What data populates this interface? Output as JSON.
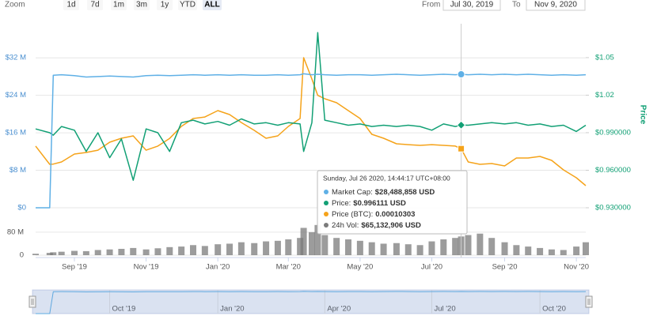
{
  "zoom": {
    "label": "Zoom",
    "buttons": [
      "1d",
      "7d",
      "1m",
      "3m",
      "1y",
      "YTD",
      "ALL"
    ],
    "selected": "ALL"
  },
  "range": {
    "from_label": "From",
    "from": "Jul 30, 2019",
    "to_label": "To",
    "to": "Nov 9, 2020"
  },
  "chart_data": {
    "type": "line",
    "x": [
      "2019-07-30",
      "2019-08-11",
      "2019-08-14",
      "2019-08-21",
      "2019-09-01",
      "2019-09-11",
      "2019-09-21",
      "2019-10-01",
      "2019-10-11",
      "2019-10-21",
      "2019-11-01",
      "2019-11-11",
      "2019-11-21",
      "2019-12-01",
      "2019-12-11",
      "2019-12-21",
      "2020-01-01",
      "2020-01-11",
      "2020-01-21",
      "2020-02-01",
      "2020-02-11",
      "2020-02-21",
      "2020-03-01",
      "2020-03-11",
      "2020-03-14",
      "2020-03-21",
      "2020-03-26",
      "2020-04-01",
      "2020-04-11",
      "2020-04-21",
      "2020-05-01",
      "2020-05-11",
      "2020-05-21",
      "2020-06-01",
      "2020-06-11",
      "2020-06-21",
      "2020-07-01",
      "2020-07-11",
      "2020-07-21",
      "2020-07-26",
      "2020-08-01",
      "2020-08-11",
      "2020-08-21",
      "2020-09-01",
      "2020-09-11",
      "2020-09-21",
      "2020-10-01",
      "2020-10-11",
      "2020-10-21",
      "2020-11-01",
      "2020-11-09"
    ],
    "xlim": [
      "2019-07-30",
      "2020-11-09"
    ],
    "xticks": [
      {
        "value": "2019-09-01",
        "label": "Sep '19"
      },
      {
        "value": "2019-11-01",
        "label": "Nov '19"
      },
      {
        "value": "2020-01-01",
        "label": "Jan '20"
      },
      {
        "value": "2020-03-01",
        "label": "Mar '20"
      },
      {
        "value": "2020-05-01",
        "label": "May '20"
      },
      {
        "value": "2020-07-01",
        "label": "Jul '20"
      },
      {
        "value": "2020-09-01",
        "label": "Sep '20"
      },
      {
        "value": "2020-11-01",
        "label": "Nov '20"
      }
    ],
    "ylim": [
      0,
      37600000
    ],
    "yticks": [
      {
        "value": 0,
        "label": "$0"
      },
      {
        "value": 8000000,
        "label": "$8 M"
      },
      {
        "value": 16000000,
        "label": "$16 M"
      },
      {
        "value": 24000000,
        "label": "$24 M"
      },
      {
        "value": 32000000,
        "label": "$32 M"
      }
    ],
    "y2lim": [
      0.93,
      1.0708
    ],
    "y2ticks": [
      {
        "value": 0.93,
        "label": "$0.930000"
      },
      {
        "value": 0.96,
        "label": "$0.960000"
      },
      {
        "value": 0.99,
        "label": "$0.990000"
      },
      {
        "value": 1.02,
        "label": "$1.02"
      },
      {
        "value": 1.05,
        "label": "$1.05"
      }
    ],
    "y2label": "Price",
    "y3lim": [
      4e-05,
      0.000228
    ],
    "grid": true,
    "series": [
      {
        "color": "#5fb0e6",
        "axis": "y",
        "values": [
          0,
          0,
          28300000,
          28400000,
          28200000,
          27900000,
          28000000,
          28100000,
          28000000,
          27900000,
          28200000,
          28300000,
          28200000,
          28300000,
          28400000,
          28300000,
          28400000,
          28300000,
          28400000,
          28300000,
          28300000,
          28400000,
          28300000,
          28400000,
          28600000,
          28400000,
          28500000,
          28400000,
          28300000,
          28400000,
          28400000,
          28300000,
          28400000,
          28500000,
          28400000,
          28300000,
          28400000,
          28500000,
          28400000,
          28488858,
          28400000,
          28500000,
          28400000,
          28500000,
          28400000,
          28500000,
          28400000,
          28300000,
          28400000,
          28300000,
          28400000
        ]
      },
      {
        "color": "#12a075",
        "axis": "y2",
        "values": [
          0.993,
          0.99,
          0.988,
          0.995,
          0.992,
          0.975,
          0.99,
          0.97,
          0.985,
          0.952,
          0.993,
          0.99,
          0.975,
          0.998,
          1.0,
          0.997,
          0.999,
          0.996,
          1.001,
          0.997,
          0.998,
          0.996,
          0.998,
          0.997,
          0.975,
          0.998,
          1.07,
          1.0,
          0.998,
          0.996,
          0.997,
          0.995,
          0.996,
          0.995,
          0.996,
          0.995,
          0.992,
          0.997,
          0.995,
          0.996111,
          0.996,
          0.997,
          0.998,
          0.997,
          0.998,
          0.996,
          0.997,
          0.995,
          0.996,
          0.991,
          0.996
        ]
      },
      {
        "color": "#f5a31a",
        "axis": "y3",
        "values": [
          0.0001058,
          8.64e-05,
          8.66e-05,
          8.89e-05,
          9.73e-05,
          9.9e-05,
          0.0001015,
          0.00011,
          0.0001142,
          0.0001167,
          0.0001015,
          0.0001058,
          0.000114,
          0.0001268,
          0.0001353,
          0.0001369,
          0.0001437,
          0.0001395,
          0.000131,
          0.0001226,
          0.0001142,
          0.0001167,
          0.0001268,
          0.0001353,
          0.0002002,
          0.0001774,
          0.00016,
          0.0001563,
          0.0001521,
          0.0001437,
          0.0001353,
          0.0001184,
          0.0001142,
          0.0001083,
          0.0001074,
          0.0001066,
          0.0001074,
          0.0001066,
          0.0001058,
          0.00010303,
          8.89e-05,
          8.64e-05,
          8.72e-05,
          8.47e-05,
          9.31e-05,
          9.31e-05,
          9.48e-05,
          9.06e-05,
          8.05e-05,
          7.2e-05,
          6.36e-05
        ]
      }
    ],
    "volume": {
      "color": "#7b7b7b",
      "ylim": [
        0,
        110000000
      ],
      "yticks": [
        {
          "value": 0,
          "label": "0"
        },
        {
          "value": 80000000,
          "label": "80 M"
        }
      ],
      "values": [
        5000000,
        8000000,
        10000000,
        12000000,
        15000000,
        14000000,
        18000000,
        20000000,
        22000000,
        25000000,
        20000000,
        24000000,
        28000000,
        30000000,
        35000000,
        32000000,
        38000000,
        40000000,
        45000000,
        42000000,
        48000000,
        50000000,
        55000000,
        60000000,
        95000000,
        80000000,
        105000000,
        70000000,
        60000000,
        55000000,
        50000000,
        45000000,
        40000000,
        42000000,
        38000000,
        35000000,
        48000000,
        55000000,
        60000000,
        65132906,
        70000000,
        75000000,
        60000000,
        45000000,
        35000000,
        30000000,
        25000000,
        20000000,
        18000000,
        30000000,
        45000000
      ]
    },
    "tooltip": {
      "x": "2020-07-26",
      "header": "Sunday, Jul 26 2020, 14:44:17 UTC+08:00",
      "rows": [
        "Market Cap:",
        "Price:",
        "Price (BTC):",
        "24h Vol:"
      ],
      "values": [
        "$28,488,858 USD",
        "$0.996111 USD",
        "0.00010303",
        "$65,132,906 USD"
      ]
    },
    "navigator": {
      "xticks": [
        {
          "value": "2019-10-01",
          "label": "Oct '19"
        },
        {
          "value": "2020-01-01",
          "label": "Jan '20"
        },
        {
          "value": "2020-04-01",
          "label": "Apr '20"
        },
        {
          "value": "2020-07-01",
          "label": "Jul '20"
        },
        {
          "value": "2020-10-01",
          "label": "Oct '20"
        }
      ]
    }
  }
}
